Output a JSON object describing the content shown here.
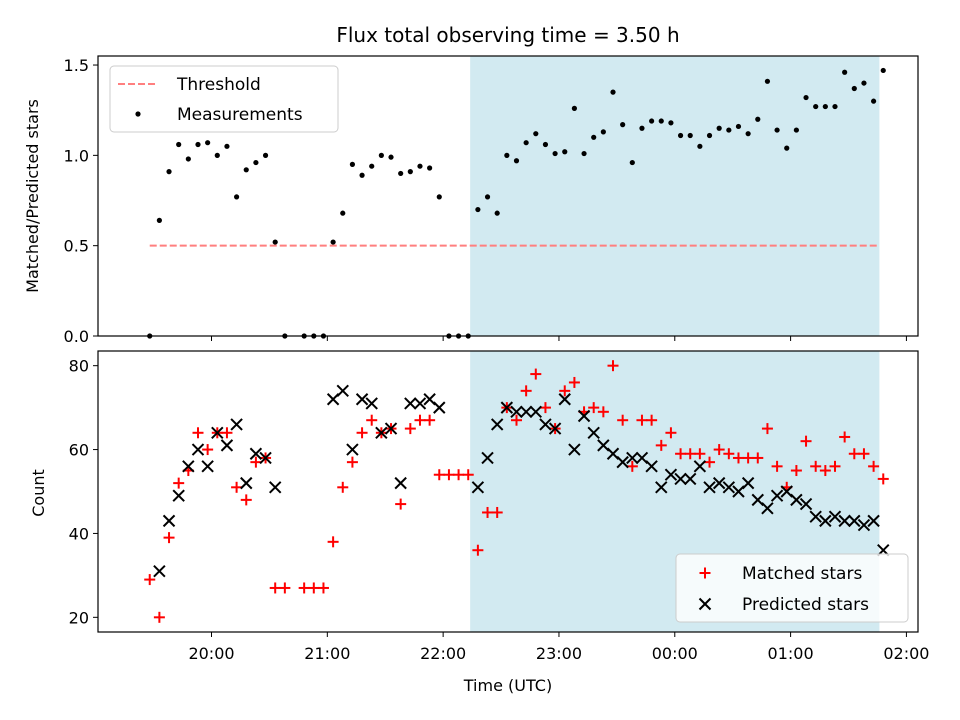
{
  "figure": {
    "title": "Flux total observing time = 3.50 h",
    "xlabel": "Time (UTC)",
    "x_ticks": [
      "20:00",
      "21:00",
      "22:00",
      "23:00",
      "00:00",
      "01:00",
      "02:00"
    ]
  },
  "colors": {
    "threshold": "#ff7f7f",
    "matched": "#ff0000",
    "predicted": "#000000",
    "shade": "#add8e6",
    "axes": "#000000"
  },
  "chart_data": [
    {
      "type": "scatter",
      "panel": "top",
      "ylabel": "Matched/Predicted stars",
      "ylim": [
        0,
        1.55
      ],
      "yticks": [
        "0.0",
        "0.5",
        "1.0",
        "1.5"
      ],
      "x_unit": "hours after 19:00 UTC on the first day",
      "xlim": [
        19.02,
        26.1
      ],
      "shaded_interval": [
        "22:14",
        "25:46"
      ],
      "legend": {
        "position": "upper-left",
        "entries": [
          "Threshold",
          "Measurements"
        ]
      },
      "threshold": {
        "name": "Threshold",
        "value": 0.5,
        "x_range": [
          "19:28",
          "25:46"
        ]
      },
      "series": [
        {
          "name": "Measurements",
          "points": [
            [
              "19:28",
              0.0
            ],
            [
              "19:33",
              0.64
            ],
            [
              "19:38",
              0.91
            ],
            [
              "19:43",
              1.06
            ],
            [
              "19:48",
              0.98
            ],
            [
              "19:53",
              1.06
            ],
            [
              "19:58",
              1.07
            ],
            [
              "20:03",
              1.0
            ],
            [
              "20:08",
              1.05
            ],
            [
              "20:13",
              0.77
            ],
            [
              "20:18",
              0.92
            ],
            [
              "20:23",
              0.96
            ],
            [
              "20:28",
              1.0
            ],
            [
              "20:33",
              0.52
            ],
            [
              "20:38",
              0.0
            ],
            [
              "20:48",
              0.0
            ],
            [
              "20:53",
              0.0
            ],
            [
              "20:58",
              0.0
            ],
            [
              "21:03",
              0.52
            ],
            [
              "21:08",
              0.68
            ],
            [
              "21:13",
              0.95
            ],
            [
              "21:18",
              0.89
            ],
            [
              "21:23",
              0.94
            ],
            [
              "21:28",
              1.0
            ],
            [
              "21:33",
              0.99
            ],
            [
              "21:38",
              0.9
            ],
            [
              "21:43",
              0.91
            ],
            [
              "21:48",
              0.94
            ],
            [
              "21:53",
              0.93
            ],
            [
              "21:58",
              0.77
            ],
            [
              "22:03",
              0.0
            ],
            [
              "22:08",
              0.0
            ],
            [
              "22:13",
              0.0
            ],
            [
              "22:18",
              0.7
            ],
            [
              "22:23",
              0.77
            ],
            [
              "22:28",
              0.68
            ],
            [
              "22:33",
              1.0
            ],
            [
              "22:38",
              0.97
            ],
            [
              "22:43",
              1.07
            ],
            [
              "22:48",
              1.12
            ],
            [
              "22:53",
              1.06
            ],
            [
              "22:58",
              1.01
            ],
            [
              "23:03",
              1.02
            ],
            [
              "23:08",
              1.26
            ],
            [
              "23:13",
              1.01
            ],
            [
              "23:18",
              1.1
            ],
            [
              "23:23",
              1.13
            ],
            [
              "23:28",
              1.35
            ],
            [
              "23:33",
              1.17
            ],
            [
              "23:38",
              0.96
            ],
            [
              "23:43",
              1.15
            ],
            [
              "23:48",
              1.19
            ],
            [
              "23:53",
              1.19
            ],
            [
              "23:58",
              1.18
            ],
            [
              "24:03",
              1.11
            ],
            [
              "24:08",
              1.11
            ],
            [
              "24:13",
              1.05
            ],
            [
              "24:18",
              1.11
            ],
            [
              "24:23",
              1.15
            ],
            [
              "24:28",
              1.14
            ],
            [
              "24:33",
              1.16
            ],
            [
              "24:38",
              1.12
            ],
            [
              "24:43",
              1.2
            ],
            [
              "24:48",
              1.41
            ],
            [
              "24:53",
              1.14
            ],
            [
              "24:58",
              1.04
            ],
            [
              "25:03",
              1.14
            ],
            [
              "25:08",
              1.32
            ],
            [
              "25:13",
              1.27
            ],
            [
              "25:18",
              1.27
            ],
            [
              "25:23",
              1.27
            ],
            [
              "25:28",
              1.46
            ],
            [
              "25:33",
              1.37
            ],
            [
              "25:38",
              1.4
            ],
            [
              "25:43",
              1.3
            ],
            [
              "25:48",
              1.47
            ]
          ]
        }
      ]
    },
    {
      "type": "scatter",
      "panel": "bottom",
      "ylabel": "Count",
      "ylim": [
        16.5,
        83.5
      ],
      "yticks": [
        "20",
        "40",
        "60",
        "80"
      ],
      "x_unit": "hours after 19:00 UTC on the first day",
      "xlim": [
        19.02,
        26.1
      ],
      "shaded_interval": [
        "22:14",
        "25:46"
      ],
      "legend": {
        "position": "lower-right",
        "entries": [
          "Matched stars",
          "Predicted stars"
        ]
      },
      "series": [
        {
          "name": "Matched stars",
          "marker": "+",
          "points": [
            [
              "19:28",
              29
            ],
            [
              "19:33",
              20
            ],
            [
              "19:38",
              39
            ],
            [
              "19:43",
              52
            ],
            [
              "19:48",
              55
            ],
            [
              "19:53",
              64
            ],
            [
              "19:58",
              60
            ],
            [
              "20:03",
              64
            ],
            [
              "20:08",
              64
            ],
            [
              "20:13",
              51
            ],
            [
              "20:18",
              48
            ],
            [
              "20:23",
              57
            ],
            [
              "20:28",
              58
            ],
            [
              "20:33",
              27
            ],
            [
              "20:38",
              27
            ],
            [
              "20:48",
              27
            ],
            [
              "20:53",
              27
            ],
            [
              "20:58",
              27
            ],
            [
              "21:03",
              38
            ],
            [
              "21:08",
              51
            ],
            [
              "21:13",
              57
            ],
            [
              "21:18",
              64
            ],
            [
              "21:23",
              67
            ],
            [
              "21:28",
              64
            ],
            [
              "21:33",
              65
            ],
            [
              "21:38",
              47
            ],
            [
              "21:43",
              65
            ],
            [
              "21:48",
              67
            ],
            [
              "21:53",
              67
            ],
            [
              "21:58",
              54
            ],
            [
              "22:03",
              54
            ],
            [
              "22:08",
              54
            ],
            [
              "22:13",
              54
            ],
            [
              "22:18",
              36
            ],
            [
              "22:23",
              45
            ],
            [
              "22:28",
              45
            ],
            [
              "22:33",
              70
            ],
            [
              "22:38",
              67
            ],
            [
              "22:43",
              74
            ],
            [
              "22:48",
              78
            ],
            [
              "22:53",
              70
            ],
            [
              "22:58",
              65
            ],
            [
              "23:03",
              74
            ],
            [
              "23:08",
              76
            ],
            [
              "23:13",
              69
            ],
            [
              "23:18",
              70
            ],
            [
              "23:23",
              69
            ],
            [
              "23:28",
              80
            ],
            [
              "23:33",
              67
            ],
            [
              "23:38",
              56
            ],
            [
              "23:43",
              67
            ],
            [
              "23:48",
              67
            ],
            [
              "23:53",
              61
            ],
            [
              "23:58",
              64
            ],
            [
              "24:03",
              59
            ],
            [
              "24:08",
              59
            ],
            [
              "24:13",
              59
            ],
            [
              "24:18",
              57
            ],
            [
              "24:23",
              60
            ],
            [
              "24:28",
              59
            ],
            [
              "24:33",
              58
            ],
            [
              "24:38",
              58
            ],
            [
              "24:43",
              58
            ],
            [
              "24:48",
              65
            ],
            [
              "24:53",
              56
            ],
            [
              "24:58",
              51
            ],
            [
              "25:03",
              55
            ],
            [
              "25:08",
              62
            ],
            [
              "25:13",
              56
            ],
            [
              "25:18",
              55
            ],
            [
              "25:23",
              56
            ],
            [
              "25:28",
              63
            ],
            [
              "25:33",
              59
            ],
            [
              "25:38",
              59
            ],
            [
              "25:43",
              56
            ],
            [
              "25:48",
              53
            ]
          ]
        },
        {
          "name": "Predicted stars",
          "marker": "x",
          "points": [
            [
              "19:33",
              31
            ],
            [
              "19:38",
              43
            ],
            [
              "19:43",
              49
            ],
            [
              "19:48",
              56
            ],
            [
              "19:53",
              60
            ],
            [
              "19:58",
              56
            ],
            [
              "20:03",
              64
            ],
            [
              "20:08",
              61
            ],
            [
              "20:13",
              66
            ],
            [
              "20:18",
              52
            ],
            [
              "20:23",
              59
            ],
            [
              "20:28",
              58
            ],
            [
              "20:33",
              51
            ],
            [
              "21:03",
              72
            ],
            [
              "21:08",
              74
            ],
            [
              "21:13",
              60
            ],
            [
              "21:18",
              72
            ],
            [
              "21:23",
              71
            ],
            [
              "21:28",
              64
            ],
            [
              "21:33",
              65
            ],
            [
              "21:38",
              52
            ],
            [
              "21:43",
              71
            ],
            [
              "21:48",
              71
            ],
            [
              "21:53",
              72
            ],
            [
              "21:58",
              70
            ],
            [
              "22:18",
              51
            ],
            [
              "22:23",
              58
            ],
            [
              "22:28",
              66
            ],
            [
              "22:33",
              70
            ],
            [
              "22:38",
              69
            ],
            [
              "22:43",
              69
            ],
            [
              "22:48",
              69
            ],
            [
              "22:53",
              66
            ],
            [
              "22:58",
              65
            ],
            [
              "23:03",
              72
            ],
            [
              "23:08",
              60
            ],
            [
              "23:13",
              68
            ],
            [
              "23:18",
              64
            ],
            [
              "23:23",
              61
            ],
            [
              "23:28",
              59
            ],
            [
              "23:33",
              57
            ],
            [
              "23:38",
              58
            ],
            [
              "23:43",
              58
            ],
            [
              "23:48",
              56
            ],
            [
              "23:53",
              51
            ],
            [
              "23:58",
              54
            ],
            [
              "24:03",
              53
            ],
            [
              "24:08",
              53
            ],
            [
              "24:13",
              56
            ],
            [
              "24:18",
              51
            ],
            [
              "24:23",
              52
            ],
            [
              "24:28",
              51
            ],
            [
              "24:33",
              50
            ],
            [
              "24:38",
              52
            ],
            [
              "24:43",
              48
            ],
            [
              "24:48",
              46
            ],
            [
              "24:53",
              49
            ],
            [
              "24:58",
              50
            ],
            [
              "25:03",
              48
            ],
            [
              "25:08",
              47
            ],
            [
              "25:13",
              44
            ],
            [
              "25:18",
              43
            ],
            [
              "25:23",
              44
            ],
            [
              "25:28",
              43
            ],
            [
              "25:33",
              43
            ],
            [
              "25:38",
              42
            ],
            [
              "25:43",
              43
            ],
            [
              "25:48",
              36
            ]
          ]
        }
      ]
    }
  ]
}
